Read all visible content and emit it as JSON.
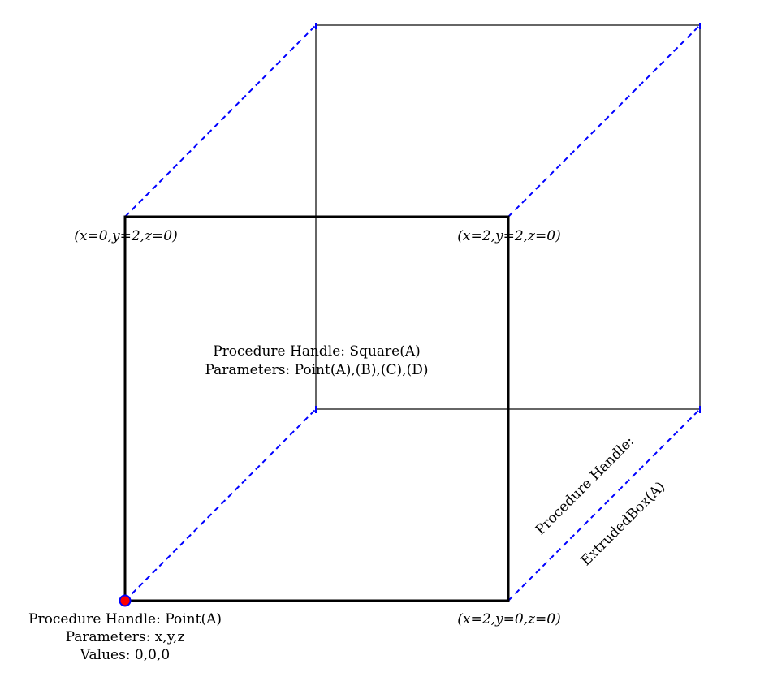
{
  "coordinates": {
    "top_left": "(x=0,y=2,z=0)",
    "top_right": "(x=2,y=2,z=0)",
    "bottom_right": "(x=2,y=0,z=0)"
  },
  "square_handle": {
    "line1": "Procedure Handle: Square(A)",
    "line2": "Parameters: Point(A),(B),(C),(D)"
  },
  "point_handle": {
    "line1": "Procedure Handle: Point(A)",
    "line2": "Parameters: x,y,z",
    "line3": "Values: 0,0,0"
  },
  "extrude_handle": {
    "line1": "Procedure Handle:",
    "line2": "ExtrudedBox(A)"
  },
  "colors": {
    "front_square": "#000000",
    "back_square": "#000000",
    "extrusion_edges": "#0000ff",
    "point_fill": "#ff0000",
    "point_stroke": "#0000ff"
  }
}
